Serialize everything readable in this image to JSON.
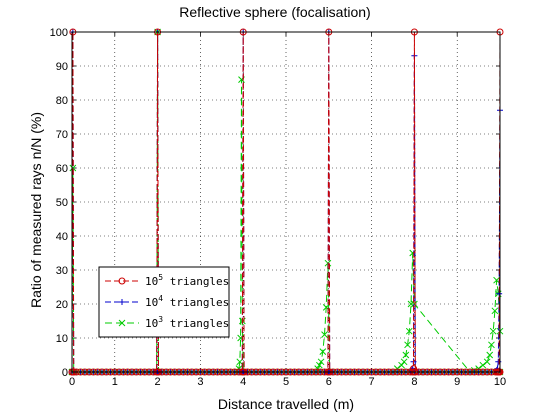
{
  "chart_data": {
    "type": "line",
    "title": "Reflective sphere (focalisation)",
    "xlabel": "Distance travelled (m)",
    "ylabel": "Ratio of measured rays n/N (%)",
    "xlim": [
      0,
      10
    ],
    "ylim": [
      0,
      100
    ],
    "xticks": [
      "0",
      "1",
      "2",
      "3",
      "4",
      "5",
      "6",
      "7",
      "8",
      "9",
      "10"
    ],
    "yticks": [
      "0",
      "10",
      "20",
      "30",
      "40",
      "50",
      "60",
      "70",
      "80",
      "90",
      "100"
    ],
    "grid": true,
    "legend_position": "lower-left",
    "series": [
      {
        "name": "10^5 triangles",
        "legend_base": "10",
        "legend_exp": "5",
        "legend_suffix": " triangles",
        "color": "#cc0000",
        "dash": "6 3",
        "marker": "circle",
        "x": [
          0,
          0.02,
          0.04,
          1.98,
          2.0,
          2.02,
          3.98,
          4.0,
          4.02,
          5.98,
          6.0,
          6.02,
          7.96,
          7.98,
          8.0,
          8.02,
          9.94,
          9.96,
          9.98,
          10.0
        ],
        "y": [
          0,
          100,
          0,
          0,
          100,
          0,
          0,
          100,
          0,
          0,
          100,
          0,
          0,
          1,
          100,
          0,
          0,
          0,
          0,
          100
        ]
      },
      {
        "name": "10^4 triangles",
        "legend_base": "10",
        "legend_exp": "4",
        "legend_suffix": " triangles",
        "color": "#0000cc",
        "dash": "6 3",
        "marker": "plus",
        "x": [
          0,
          0.02,
          0.04,
          1.98,
          2.0,
          2.02,
          3.98,
          4.0,
          4.02,
          5.98,
          6.0,
          6.02,
          7.92,
          7.94,
          7.96,
          7.98,
          8.0,
          8.02,
          9.9,
          9.92,
          9.94,
          9.96,
          9.98,
          10.0
        ],
        "y": [
          0,
          100,
          0,
          0,
          100,
          0,
          0,
          100,
          0,
          0,
          100,
          0,
          0,
          0.5,
          1,
          3,
          93,
          0,
          0,
          0.5,
          1,
          3,
          23,
          77
        ]
      },
      {
        "name": "10^3 triangles",
        "legend_base": "10",
        "legend_exp": "3",
        "legend_suffix": " triangles",
        "color": "#00cc00",
        "dash": "7 4",
        "marker": "cross",
        "x": [
          0,
          0.02,
          0.04,
          1.98,
          2.0,
          2.02,
          3.88,
          3.9,
          3.92,
          3.94,
          3.96,
          3.98,
          4.0,
          5.7,
          5.74,
          5.78,
          5.82,
          5.86,
          5.9,
          5.94,
          5.98,
          6.02,
          7.5,
          7.6,
          7.7,
          7.76,
          7.8,
          7.84,
          7.88,
          7.92,
          7.96,
          8.0,
          9.3,
          9.4,
          9.5,
          9.6,
          9.7,
          9.76,
          9.8,
          9.84,
          9.88,
          9.92,
          9.96,
          10.0
        ],
        "y": [
          0,
          60,
          0,
          0,
          100,
          0,
          0,
          1,
          3,
          10,
          86,
          15,
          0,
          0,
          1,
          2,
          3,
          6,
          11,
          19,
          32,
          0,
          0,
          1,
          2,
          3,
          5,
          8,
          12,
          20,
          35,
          20,
          0,
          0.5,
          1,
          2,
          3,
          5,
          8,
          12,
          18,
          27,
          23,
          12
        ]
      }
    ]
  }
}
